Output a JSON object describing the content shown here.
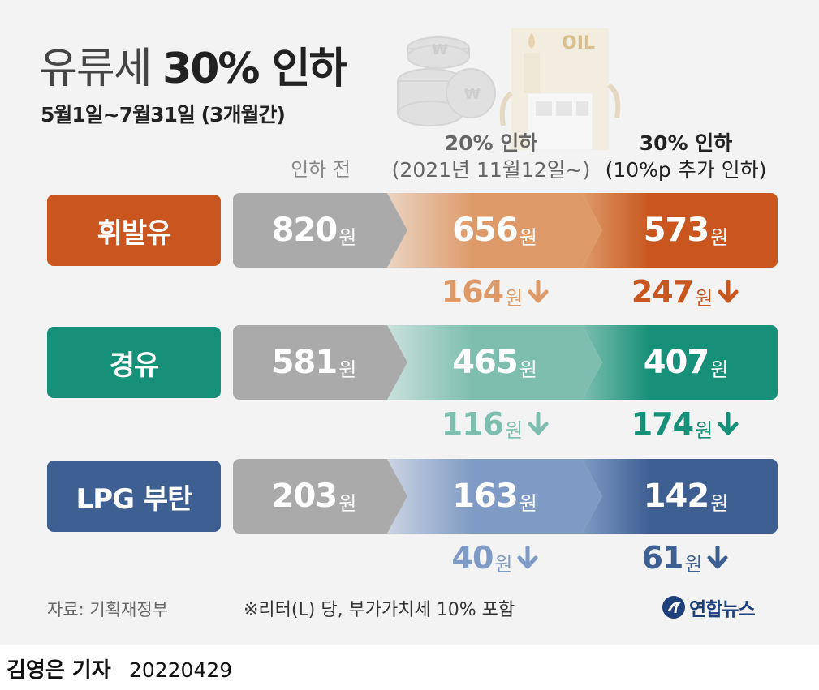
{
  "title": {
    "light": "유류세",
    "bold": "30% 인하"
  },
  "subtitle": "5월1일~7월31일 (3개월간)",
  "columns": {
    "before": "인하 전",
    "cut20": {
      "line1": "20% 인하",
      "line2": "(2021년 11월12일~)"
    },
    "cut30": {
      "line1": "30% 인하",
      "line2": "(10%p 추가 인하)"
    }
  },
  "unit": "원",
  "rows": [
    {
      "label": "휘발유",
      "before": "820",
      "cut20": "656",
      "cut30": "573",
      "drop20": "164",
      "drop30": "247",
      "colors": {
        "label": "#c8561e",
        "before": "#aaaaaa",
        "cut20": "#dd9a68",
        "cut30": "#c8561e",
        "drop20": "#dd9a68",
        "drop30": "#c8561e"
      }
    },
    {
      "label": "경유",
      "before": "581",
      "cut20": "465",
      "cut30": "407",
      "drop20": "116",
      "drop30": "174",
      "colors": {
        "label": "#169078",
        "before": "#aaaaaa",
        "cut20": "#7dbeaf",
        "cut30": "#169078",
        "drop20": "#7dbeaf",
        "drop30": "#169078"
      }
    },
    {
      "label": "LPG 부탄",
      "before": "203",
      "cut20": "163",
      "cut30": "142",
      "drop20": "40",
      "drop30": "61",
      "colors": {
        "label": "#3e5f92",
        "before": "#aaaaaa",
        "cut20": "#7f9ac4",
        "cut30": "#3e5f92",
        "drop20": "#7f9ac4",
        "drop30": "#3e5f92"
      }
    }
  ],
  "source": "자료: 기획재정부",
  "note": "※리터(L) 당, 부가가치세 10% 포함",
  "logo": "연합뉴스",
  "deco": {
    "oil_label": "OIL"
  },
  "credit": {
    "name": "김영은 기자",
    "date": "20220429"
  }
}
